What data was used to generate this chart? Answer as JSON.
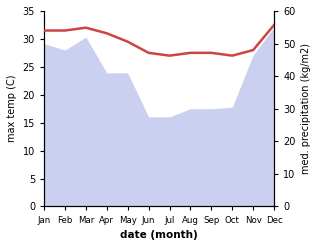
{
  "months": [
    "Jan",
    "Feb",
    "Mar",
    "Apr",
    "May",
    "Jun",
    "Jul",
    "Aug",
    "Sep",
    "Oct",
    "Nov",
    "Dec"
  ],
  "max_temp": [
    31.5,
    31.5,
    32.0,
    31.0,
    29.5,
    27.5,
    27.0,
    27.5,
    27.5,
    27.0,
    28.0,
    32.5
  ],
  "precipitation": [
    50.0,
    48.0,
    52.0,
    41.0,
    41.0,
    27.5,
    27.5,
    30.0,
    30.0,
    30.5,
    46.5,
    55.0
  ],
  "temp_ylim": [
    0,
    35
  ],
  "precip_ylim": [
    0,
    60
  ],
  "temp_yticks": [
    0,
    5,
    10,
    15,
    20,
    25,
    30,
    35
  ],
  "precip_yticks": [
    0,
    10,
    20,
    30,
    40,
    50,
    60
  ],
  "fill_color": "#b0b8e8",
  "fill_alpha": 0.65,
  "line_color": "#cc4444",
  "line_width": 1.8,
  "xlabel": "date (month)",
  "ylabel_left": "max temp (C)",
  "ylabel_right": "med. precipitation (kg/m2)",
  "bg_color": "#ffffff"
}
